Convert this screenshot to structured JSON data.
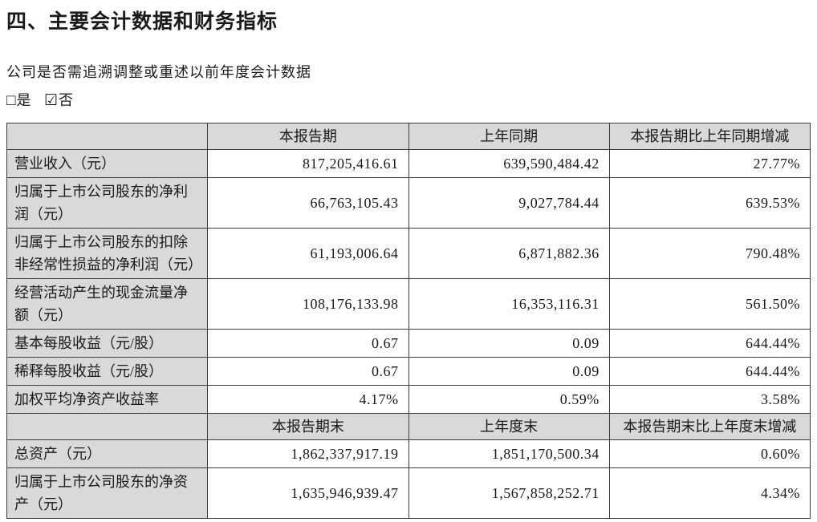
{
  "document": {
    "title": "四、主要会计数据和财务指标",
    "restate_question": "公司是否需追溯调整或重述以前年度会计数据",
    "restate_options": [
      {
        "box": "□",
        "label": "是",
        "checked": false
      },
      {
        "box": "☑",
        "label": "否",
        "checked": true
      }
    ]
  },
  "table": {
    "section1": {
      "headers": [
        "",
        "本报告期",
        "上年同期",
        "本报告期比上年同期增减"
      ],
      "rows": [
        {
          "label": "营业收入（元）",
          "current": "817,205,416.61",
          "prior": "639,590,484.42",
          "change": "27.77%"
        },
        {
          "label": "归属于上市公司股东的净利润（元）",
          "current": "66,763,105.43",
          "prior": "9,027,784.44",
          "change": "639.53%"
        },
        {
          "label": "归属于上市公司股东的扣除非经常性损益的净利润（元）",
          "current": "61,193,006.64",
          "prior": "6,871,882.36",
          "change": "790.48%"
        },
        {
          "label": "经营活动产生的现金流量净额（元）",
          "current": "108,176,133.98",
          "prior": "16,353,116.31",
          "change": "561.50%"
        },
        {
          "label": "基本每股收益（元/股）",
          "current": "0.67",
          "prior": "0.09",
          "change": "644.44%"
        },
        {
          "label": "稀释每股收益（元/股）",
          "current": "0.67",
          "prior": "0.09",
          "change": "644.44%"
        },
        {
          "label": "加权平均净资产收益率",
          "current": "4.17%",
          "prior": "0.59%",
          "change": "3.58%"
        }
      ]
    },
    "section2": {
      "headers": [
        "",
        "本报告期末",
        "上年度末",
        "本报告期末比上年度末增减"
      ],
      "rows": [
        {
          "label": "总资产（元）",
          "current": "1,862,337,917.19",
          "prior": "1,851,170,500.34",
          "change": "0.60%"
        },
        {
          "label": "归属于上市公司股东的净资产（元）",
          "current": "1,635,946,939.47",
          "prior": "1,567,858,252.71",
          "change": "4.34%"
        }
      ]
    }
  },
  "colors": {
    "header_fill": "#d9d9d9",
    "border": "#3c3c3c",
    "text": "#1a1a1a",
    "background": "#ffffff"
  }
}
